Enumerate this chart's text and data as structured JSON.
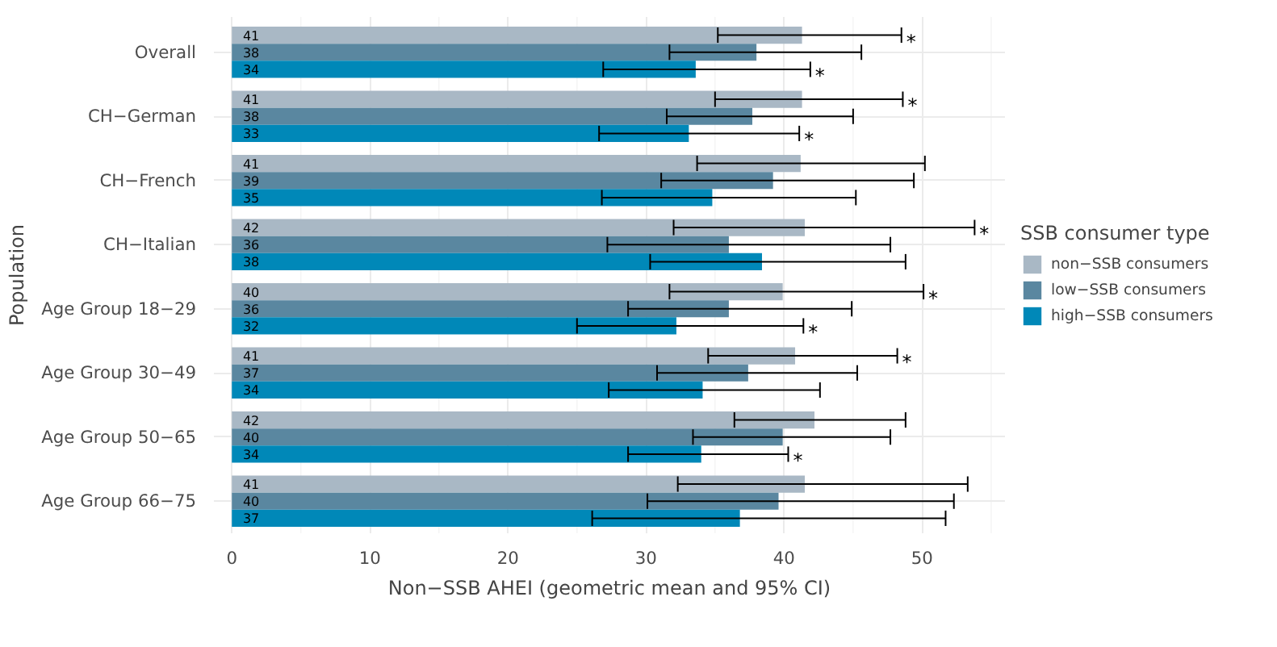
{
  "chart_data": {
    "type": "bar",
    "orientation": "horizontal",
    "xlabel": "Non−SSB AHEI (geometric mean and 95% CI)",
    "ylabel": "Population",
    "legend_title": "SSB consumer type",
    "legend": "right",
    "grid": true,
    "categories": [
      "Overall",
      "CH−German",
      "CH−French",
      "CH−Italian",
      "Age Group 18−29",
      "Age Group 30−49",
      "Age Group 50−65",
      "Age Group 66−75"
    ],
    "xlim": [
      -1.3,
      56
    ],
    "xticks": [
      0,
      10,
      20,
      30,
      40,
      50
    ],
    "series": [
      {
        "name": "non−SSB consumers",
        "color": "#a9b8c5",
        "values": [
          41.3,
          41.3,
          41.2,
          41.5,
          39.9,
          40.8,
          42.2,
          41.5
        ],
        "errors": [
          [
            35.2,
            48.5
          ],
          [
            35.0,
            48.6
          ],
          [
            33.7,
            50.2
          ],
          [
            32.0,
            53.8
          ],
          [
            31.7,
            50.1
          ],
          [
            34.5,
            48.2
          ],
          [
            36.4,
            48.8
          ],
          [
            32.3,
            53.3
          ]
        ],
        "value_labels": [
          "41",
          "41",
          "41",
          "42",
          "40",
          "41",
          "42",
          "41"
        ]
      },
      {
        "name": "low−SSB consumers",
        "color": "#5a87a0",
        "values": [
          38.0,
          37.7,
          39.2,
          36.0,
          36.0,
          37.4,
          39.9,
          39.6
        ],
        "errors": [
          [
            31.7,
            45.6
          ],
          [
            31.5,
            45.0
          ],
          [
            31.1,
            49.4
          ],
          [
            27.2,
            47.7
          ],
          [
            28.7,
            44.9
          ],
          [
            30.8,
            45.3
          ],
          [
            33.4,
            47.7
          ],
          [
            30.1,
            52.3
          ]
        ],
        "value_labels": [
          "38",
          "38",
          "39",
          "36",
          "36",
          "37",
          "40",
          "40"
        ]
      },
      {
        "name": "high−SSB consumers",
        "color": "#0088b8",
        "values": [
          33.6,
          33.1,
          34.8,
          38.4,
          32.2,
          34.1,
          34.0,
          36.8
        ],
        "errors": [
          [
            26.9,
            41.9
          ],
          [
            26.6,
            41.1
          ],
          [
            26.8,
            45.2
          ],
          [
            30.3,
            48.8
          ],
          [
            25.0,
            41.4
          ],
          [
            27.3,
            42.6
          ],
          [
            28.7,
            40.3
          ],
          [
            26.1,
            51.7
          ]
        ],
        "value_labels": [
          "34",
          "33",
          "35",
          "38",
          "32",
          "34",
          "34",
          "37"
        ]
      }
    ],
    "annotations": [
      {
        "text": "*",
        "x": 48.5
      },
      {
        "text": "*",
        "x": 41.9
      },
      {
        "text": "*",
        "x": 48.6
      },
      {
        "text": "*",
        "x": 41.1
      },
      {
        "text": "*",
        "x": 53.8
      },
      {
        "text": "*",
        "x": 50.1
      },
      {
        "text": "*",
        "x": 41.4
      },
      {
        "text": "*",
        "x": 48.2
      },
      {
        "text": "*",
        "x": 40.3
      }
    ]
  }
}
